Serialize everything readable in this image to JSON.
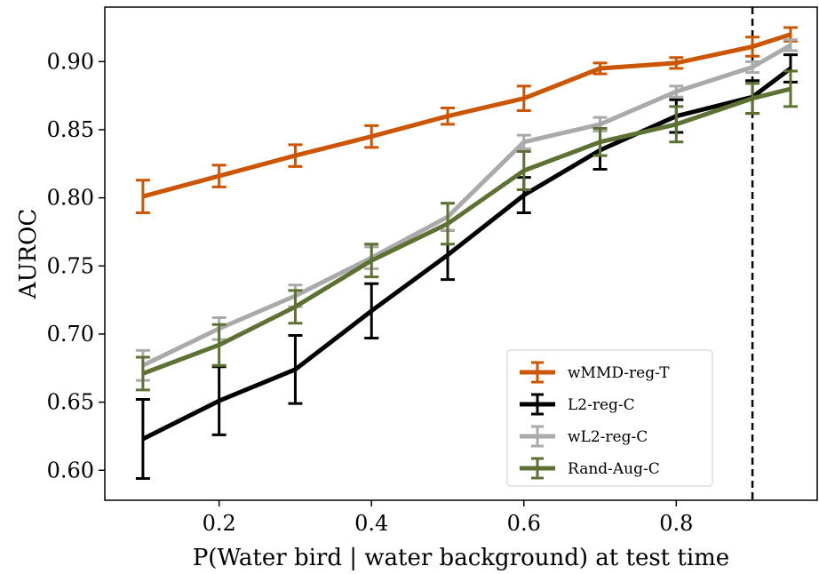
{
  "chart_data": {
    "type": "line",
    "xlabel": "P(Water bird | water background) at test time",
    "ylabel": "AUROC",
    "xlim": [
      0.05,
      0.985
    ],
    "ylim": [
      0.578,
      0.94
    ],
    "xticks": [
      "0.2",
      "0.4",
      "0.6",
      "0.8"
    ],
    "yticks": [
      "0.60",
      "0.65",
      "0.70",
      "0.75",
      "0.80",
      "0.85",
      "0.90"
    ],
    "vline_x": 0.9,
    "legend_position": "lower-right",
    "x": [
      0.1,
      0.2,
      0.3,
      0.4,
      0.5,
      0.6,
      0.7,
      0.8,
      0.9,
      0.95
    ],
    "series": [
      {
        "name": "wMMD-reg-T",
        "color": "#cc5500",
        "values": [
          0.801,
          0.816,
          0.831,
          0.845,
          0.86,
          0.873,
          0.895,
          0.899,
          0.911,
          0.92
        ],
        "errors": [
          0.012,
          0.008,
          0.008,
          0.008,
          0.006,
          0.009,
          0.004,
          0.004,
          0.007,
          0.005
        ]
      },
      {
        "name": "L2-reg-C",
        "color": "#000000",
        "values": [
          0.623,
          0.651,
          0.674,
          0.717,
          0.758,
          0.802,
          0.835,
          0.86,
          0.874,
          0.895
        ],
        "errors": [
          0.029,
          0.025,
          0.025,
          0.02,
          0.018,
          0.013,
          0.014,
          0.012,
          0.012,
          0.01
        ]
      },
      {
        "name": "wL2-reg-C",
        "color": "#aaaaaa",
        "values": [
          0.677,
          0.704,
          0.728,
          0.756,
          0.786,
          0.841,
          0.854,
          0.878,
          0.896,
          0.912
        ],
        "errors": [
          0.011,
          0.008,
          0.008,
          0.008,
          0.01,
          0.005,
          0.005,
          0.004,
          0.004,
          0.004
        ]
      },
      {
        "name": "Rand-Aug-C",
        "color": "#5d7132",
        "values": [
          0.671,
          0.692,
          0.72,
          0.754,
          0.781,
          0.82,
          0.841,
          0.854,
          0.873,
          0.88
        ],
        "errors": [
          0.012,
          0.015,
          0.012,
          0.012,
          0.015,
          0.014,
          0.01,
          0.013,
          0.011,
          0.013
        ]
      }
    ]
  }
}
